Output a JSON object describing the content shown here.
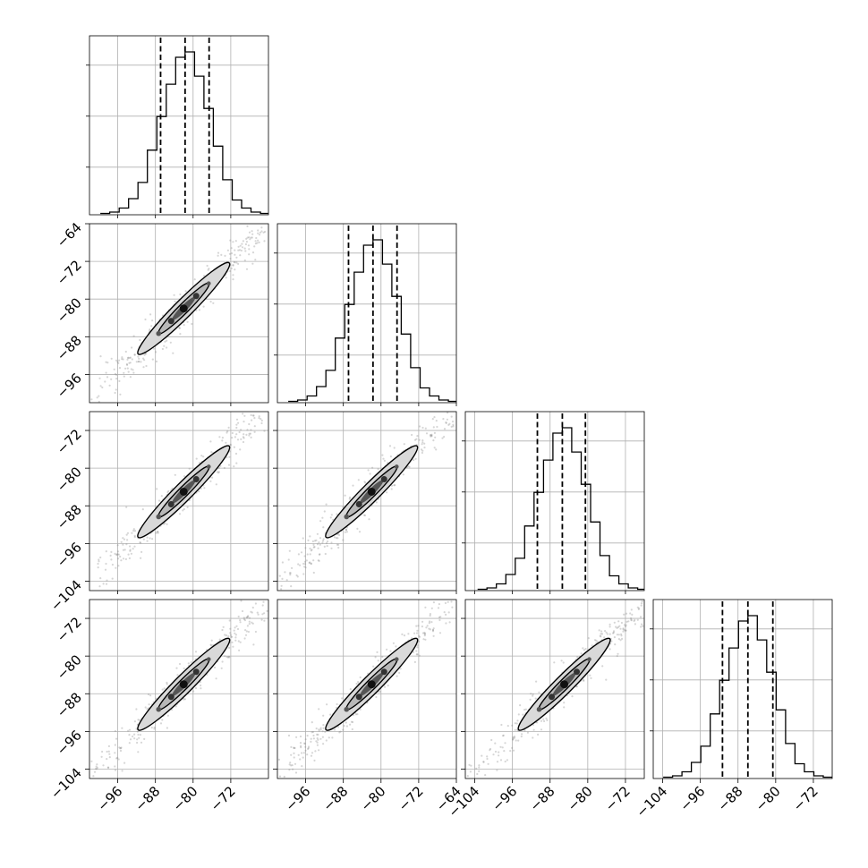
{
  "chart_data": {
    "type": "corner",
    "n_params": 4,
    "grid": true,
    "histogram": {
      "bin_edges": [
        -100,
        -98,
        -96,
        -94,
        -92,
        -90,
        -88,
        -86,
        -84,
        -82,
        -80,
        -78,
        -76,
        -74,
        -72,
        -70,
        -68,
        -66,
        -64
      ],
      "counts": [
        1,
        2,
        5,
        12,
        24,
        48,
        73,
        97,
        117,
        121,
        103,
        79,
        51,
        26,
        11,
        5,
        2,
        1
      ]
    },
    "panels_1d": [
      {
        "param": 0,
        "xlim": [
          -102,
          -64
        ],
        "quantiles": [
          -86.9,
          -81.7,
          -76.6
        ],
        "ticks": [
          -96,
          -88,
          -80,
          -72
        ]
      },
      {
        "param": 1,
        "xlim": [
          -102,
          -64
        ],
        "quantiles": [
          -86.9,
          -81.7,
          -76.6
        ],
        "ticks": [
          -96,
          -88,
          -80,
          -72,
          -64
        ]
      },
      {
        "param": 2,
        "xlim": [
          -106,
          -68
        ],
        "quantiles": [
          -90.7,
          -85.4,
          -80.5
        ],
        "ticks": [
          -104,
          -96,
          -88,
          -80,
          -72
        ]
      },
      {
        "param": 3,
        "xlim": [
          -106,
          -68
        ],
        "quantiles": [
          -91.3,
          -85.9,
          -80.6
        ],
        "ticks": [
          -104,
          -96,
          -88,
          -80,
          -72
        ]
      }
    ],
    "panels_2d": [
      {
        "x_param": 0,
        "y_param": 1,
        "center": [
          -82,
          -82
        ],
        "yticks": [
          -96,
          -88,
          -80,
          -72,
          -64
        ]
      },
      {
        "x_param": 0,
        "y_param": 2,
        "center": [
          -82,
          -85
        ],
        "yticks": [
          -104,
          -96,
          -88,
          -80,
          -72
        ]
      },
      {
        "x_param": 1,
        "y_param": 2,
        "center": [
          -82,
          -85
        ],
        "yticks": []
      },
      {
        "x_param": 0,
        "y_param": 3,
        "center": [
          -82,
          -86
        ],
        "yticks": [
          -104,
          -96,
          -88,
          -80,
          -72
        ]
      },
      {
        "x_param": 1,
        "y_param": 3,
        "center": [
          -82,
          -86
        ],
        "yticks": []
      },
      {
        "x_param": 2,
        "y_param": 3,
        "center": [
          -85,
          -86
        ],
        "yticks": []
      }
    ],
    "x_tick_labels": {
      "col0": [
        "−96",
        "−88",
        "−80",
        "−72"
      ],
      "col1": [
        "−96",
        "−88",
        "−80",
        "−72",
        "−64"
      ],
      "col2": [
        "−104",
        "−96",
        "−88",
        "−80",
        "−72"
      ],
      "col3": [
        "−104",
        "−96",
        "−88",
        "−80",
        "−72"
      ]
    },
    "y_tick_labels": {
      "row1": [
        "−64",
        "−72",
        "−80",
        "−88",
        "−96"
      ],
      "row2": [
        "−72",
        "−80",
        "−88",
        "−96",
        "−104"
      ],
      "row3": [
        "−72",
        "−80",
        "−88",
        "−96",
        "−104"
      ]
    },
    "colors": {
      "axis": "#000000",
      "grid": "#b0b0b0",
      "contour_fill": "#d9d9d9",
      "contour_core": "#555555",
      "points": "#8a8a8a"
    }
  }
}
